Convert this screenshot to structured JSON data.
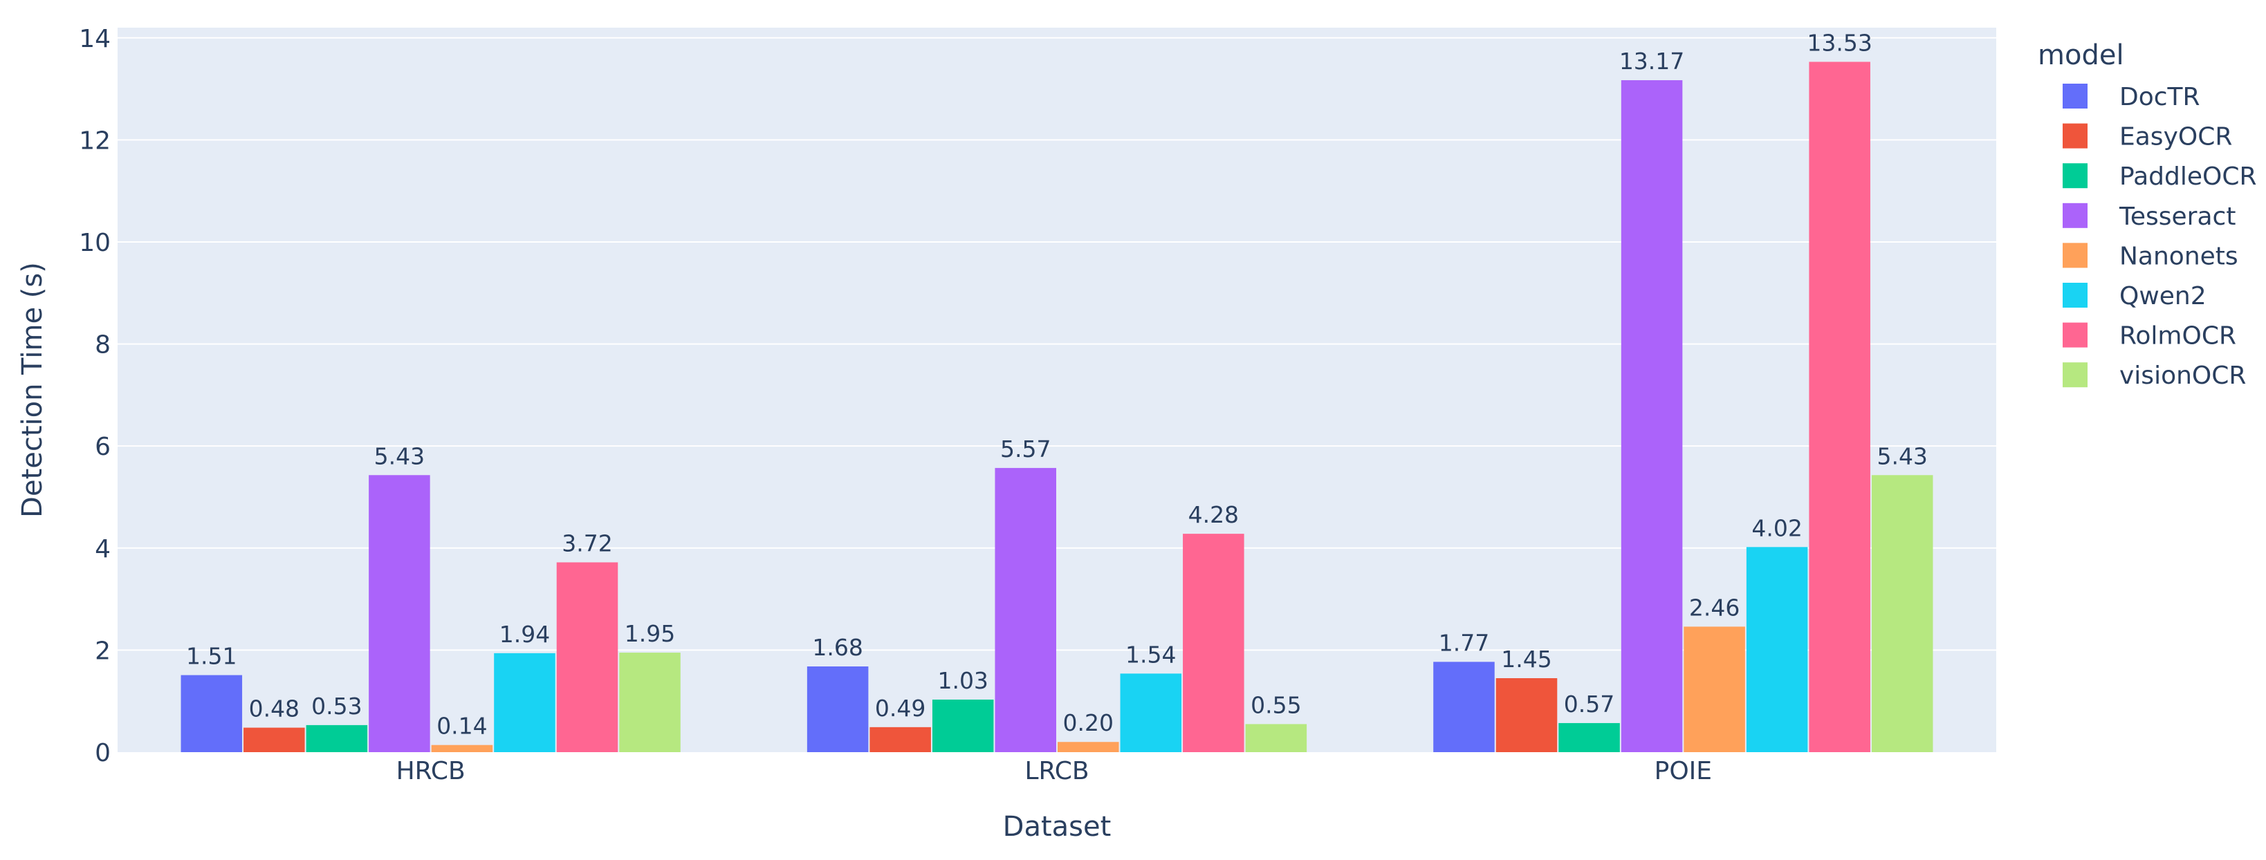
{
  "chart_data": {
    "type": "bar",
    "title": "",
    "xlabel": "Dataset",
    "ylabel": "Detection Time (s)",
    "categories": [
      "HRCB",
      "LRCB",
      "POIE"
    ],
    "ylim": [
      0,
      14.2
    ],
    "yticks": [
      0,
      2,
      4,
      6,
      8,
      10,
      12,
      14
    ],
    "grid": true,
    "legend_title": "model",
    "legend_position": "right",
    "plot_background": "#e5ecf6",
    "series": [
      {
        "name": "DocTR",
        "color": "#636efa",
        "values": [
          1.51,
          1.68,
          1.77
        ],
        "labels": [
          "1.51",
          "1.68",
          "1.77"
        ]
      },
      {
        "name": "EasyOCR",
        "color": "#ef553b",
        "values": [
          0.48,
          0.49,
          1.45
        ],
        "labels": [
          "0.48",
          "0.49",
          "1.45"
        ]
      },
      {
        "name": "PaddleOCR",
        "color": "#00cc96",
        "values": [
          0.53,
          1.03,
          0.57
        ],
        "labels": [
          "0.53",
          "1.03",
          "0.57"
        ]
      },
      {
        "name": "Tesseract",
        "color": "#ab63fa",
        "values": [
          5.43,
          5.57,
          13.17
        ],
        "labels": [
          "5.43",
          "5.57",
          "13.17"
        ]
      },
      {
        "name": "Nanonets",
        "color": "#ffa15a",
        "values": [
          0.14,
          0.2,
          2.46
        ],
        "labels": [
          "0.14",
          "0.20",
          "2.46"
        ]
      },
      {
        "name": "Qwen2",
        "color": "#19d3f3",
        "values": [
          1.94,
          1.54,
          4.02
        ],
        "labels": [
          "1.94",
          "1.54",
          "4.02"
        ]
      },
      {
        "name": "RolmOCR",
        "color": "#ff6692",
        "values": [
          3.72,
          4.28,
          13.53
        ],
        "labels": [
          "3.72",
          "4.28",
          "13.53"
        ]
      },
      {
        "name": "visionOCR",
        "color": "#b6e880",
        "values": [
          1.95,
          0.55,
          5.43
        ],
        "labels": [
          "1.95",
          "0.55",
          "5.43"
        ]
      }
    ]
  }
}
